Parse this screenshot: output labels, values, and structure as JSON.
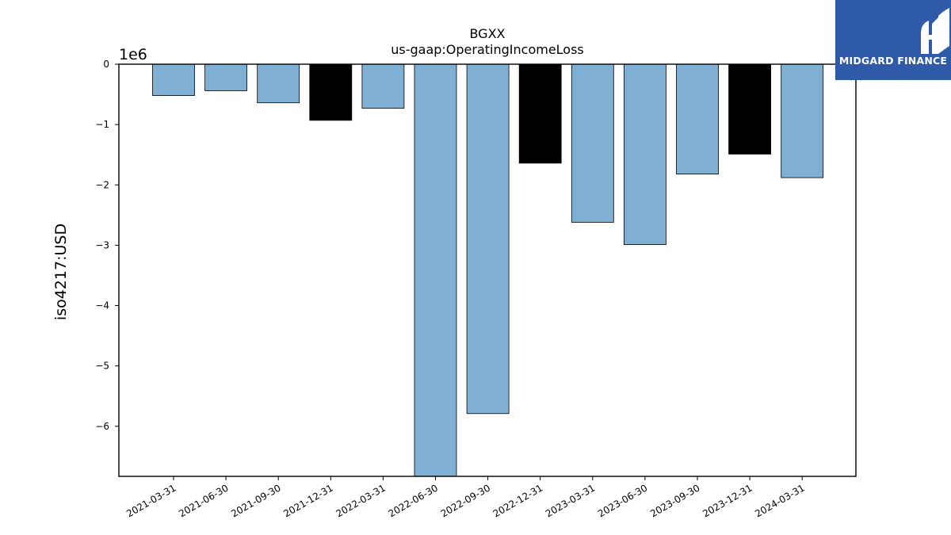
{
  "chart_data": {
    "type": "bar",
    "title": "BGXX",
    "subtitle": "us-gaap:OperatingIncomeLoss",
    "xlabel": "",
    "ylabel": "iso4217:USD",
    "scale_label": "1e6",
    "ylim": [
      -6.83,
      0
    ],
    "yticks": [
      0,
      -1,
      -2,
      -3,
      -4,
      -5,
      -6
    ],
    "ytick_labels": [
      "0",
      "−1",
      "−2",
      "−3",
      "−4",
      "−5",
      "−6"
    ],
    "grid": false,
    "categories": [
      "2021-03-31",
      "2021-06-30",
      "2021-09-30",
      "2021-12-31",
      "2022-03-31",
      "2022-06-30",
      "2022-09-30",
      "2022-12-31",
      "2023-03-31",
      "2023-06-30",
      "2023-09-30",
      "2023-12-31",
      "2024-03-31"
    ],
    "values": [
      -0.52,
      -0.44,
      -0.64,
      -0.93,
      -0.73,
      -6.83,
      -5.79,
      -1.64,
      -2.62,
      -2.99,
      -1.82,
      -1.49,
      -1.88
    ],
    "bar_colors": [
      "#7fb0d4",
      "#7fb0d4",
      "#7fb0d4",
      "#000000",
      "#7fb0d4",
      "#7fb0d4",
      "#7fb0d4",
      "#000000",
      "#7fb0d4",
      "#7fb0d4",
      "#7fb0d4",
      "#000000",
      "#7fb0d4"
    ]
  },
  "logo": {
    "text": "MIDGARD FINANCE",
    "background": "#2f5aa8"
  }
}
